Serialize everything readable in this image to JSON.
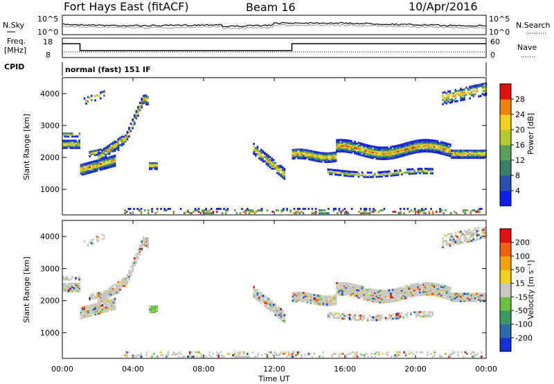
{
  "header": {
    "station": "Fort Hays East (fitACF)",
    "beam": "Beam 16",
    "date": "10/Apr/2016"
  },
  "noise_panel": {
    "left_label": "N.Sky",
    "right_label": "N.Search",
    "left_ticks": [
      "10^5",
      "10^0"
    ],
    "right_ticks": [
      "10^5",
      "10^0"
    ]
  },
  "freq_panel": {
    "left_label_1": "Freq.",
    "left_label_2": "[MHz]",
    "left_ticks": [
      "18",
      "8"
    ],
    "right_label": "Nave",
    "right_ticks": [
      "60",
      "0"
    ],
    "cpid_label": "CPID",
    "cpid_value": "normal (fast) 151 IF"
  },
  "chart_data": [
    {
      "type": "heatmap",
      "name": "power",
      "ylabel": "Slant Range [km]",
      "y_ticks": [
        "4000",
        "3000",
        "2000",
        "1000"
      ],
      "colorbar_label": "Power [dB]",
      "colorbar_ticks": [
        "28",
        "24",
        "20",
        "16",
        "12",
        "8",
        "4"
      ],
      "colorscale": [
        "#1020e0",
        "#2a4fb0",
        "#3a7f6a",
        "#5aa05a",
        "#b4cc30",
        "#f0d020",
        "#f08010",
        "#e01010"
      ],
      "ylim": [
        200,
        4500
      ],
      "xlim": [
        "00:00",
        "24:00"
      ]
    },
    {
      "type": "heatmap",
      "name": "velocity",
      "ylabel": "Slant Range [km]",
      "y_ticks": [
        "4000",
        "3000",
        "2000",
        "1000"
      ],
      "colorbar_label": "Velocity [m s⁻¹]",
      "colorbar_ticks": [
        "200",
        "100",
        "50",
        "15",
        "-15",
        "-50",
        "-100",
        "-200"
      ],
      "colorscale": [
        "#1030d0",
        "#2a6aa8",
        "#3a9a60",
        "#6cc040",
        "#c8c8c0",
        "#f0d020",
        "#f0a010",
        "#f06010",
        "#e01010"
      ],
      "ylim": [
        200,
        4500
      ],
      "xlim": [
        "00:00",
        "24:00"
      ]
    }
  ],
  "time_axis": {
    "label": "Time UT",
    "ticks": [
      "00:00",
      "04:00",
      "08:00",
      "12:00",
      "16:00",
      "20:00",
      "00:00"
    ]
  }
}
